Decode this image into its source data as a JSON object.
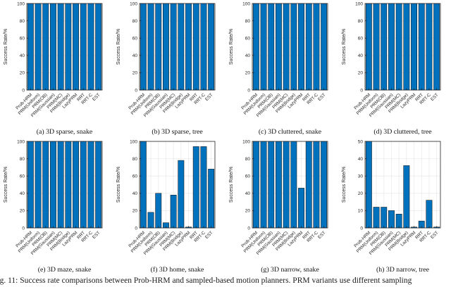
{
  "figure": {
    "caption": "Fig. 11: Success rate comparisons between Prob-HRM and sampled-based motion planners. PRM variants use different sampling",
    "colors": {
      "bar": "#0072BD",
      "bar_edge": "#0a0a0a",
      "grid": "#ebebeb",
      "axis": "#262626",
      "tick_text": "#262626",
      "caption_text": "#111111"
    }
  },
  "chart_data": [
    {
      "id": "a",
      "type": "bar",
      "title": "(a) 3D sparse, snake",
      "ylabel": "Success Rate/%",
      "ylim": [
        0,
        100
      ],
      "yticks": [
        0,
        20,
        40,
        60,
        80,
        100
      ],
      "grid": "on",
      "legend": "none",
      "categories": [
        "Prob-HRM",
        "PRM(Uniform)",
        "PRM(OB)",
        "PRM(Gaussian)",
        "PRM(MC)",
        "PRM(Bridge)",
        "LazyPRM",
        "RRT",
        "RRT-C",
        "EST"
      ],
      "values": [
        100,
        100,
        100,
        100,
        100,
        100,
        100,
        100,
        100,
        100
      ]
    },
    {
      "id": "b",
      "type": "bar",
      "title": "(b) 3D sparse, tree",
      "ylabel": "Success Rate/%",
      "ylim": [
        0,
        100
      ],
      "yticks": [
        0,
        20,
        40,
        60,
        80,
        100
      ],
      "grid": "on",
      "legend": "none",
      "categories": [
        "Prob-HRM",
        "PRM(Uniform)",
        "PRM(OB)",
        "PRM(Gaussian)",
        "PRM(MC)",
        "PRM(Bridge)",
        "LazyPRM",
        "RRT",
        "RRT-C",
        "EST"
      ],
      "values": [
        100,
        100,
        100,
        100,
        100,
        100,
        100,
        100,
        100,
        100
      ]
    },
    {
      "id": "c",
      "type": "bar",
      "title": "(c) 3D cluttered, snake",
      "ylabel": "Success Rate/%",
      "ylim": [
        0,
        100
      ],
      "yticks": [
        0,
        20,
        40,
        60,
        80,
        100
      ],
      "grid": "on",
      "legend": "none",
      "categories": [
        "Prob-HRM",
        "PRM(Uniform)",
        "PRM(OB)",
        "PRM(Gaussian)",
        "PRM(MC)",
        "PRM(Bridge)",
        "LazyPRM",
        "RRT",
        "RRT-C",
        "EST"
      ],
      "values": [
        100,
        100,
        100,
        100,
        100,
        100,
        100,
        100,
        100,
        100
      ]
    },
    {
      "id": "d",
      "type": "bar",
      "title": "(d) 3D cluttered, tree",
      "ylabel": "Success Rate/%",
      "ylim": [
        0,
        100
      ],
      "yticks": [
        0,
        20,
        40,
        60,
        80,
        100
      ],
      "grid": "on",
      "legend": "none",
      "categories": [
        "Prob-HRM",
        "PRM(Uniform)",
        "PRM(OB)",
        "PRM(Gaussian)",
        "PRM(MC)",
        "PRM(Bridge)",
        "LazyPRM",
        "RRT",
        "RRT-C",
        "EST"
      ],
      "values": [
        100,
        100,
        100,
        100,
        100,
        100,
        100,
        100,
        100,
        100
      ]
    },
    {
      "id": "e",
      "type": "bar",
      "title": "(e) 3D maze, snake",
      "ylabel": "Success Rate/%",
      "ylim": [
        0,
        100
      ],
      "yticks": [
        0,
        20,
        40,
        60,
        80,
        100
      ],
      "grid": "on",
      "legend": "none",
      "categories": [
        "Prob-HRM",
        "PRM(Uniform)",
        "PRM(OB)",
        "PRM(Gaussian)",
        "PRM(MC)",
        "PRM(Bridge)",
        "LazyPRM",
        "RRT",
        "RRT-C",
        "EST"
      ],
      "values": [
        100,
        100,
        100,
        100,
        100,
        100,
        100,
        100,
        100,
        100
      ]
    },
    {
      "id": "f",
      "type": "bar",
      "title": "(f) 3D home, snake",
      "ylabel": "Success Rate/%",
      "ylim": [
        0,
        100
      ],
      "yticks": [
        0,
        20,
        40,
        60,
        80,
        100
      ],
      "grid": "on",
      "legend": "none",
      "categories": [
        "Prob-HRM",
        "PRM(Uniform)",
        "PRM(OB)",
        "PRM(Gaussian)",
        "PRM(MC)",
        "PRM(Bridge)",
        "LazyPRM",
        "RRT",
        "RRT-C",
        "EST"
      ],
      "values": [
        100,
        18,
        40,
        6,
        38,
        78,
        1,
        94,
        94,
        68
      ]
    },
    {
      "id": "g",
      "type": "bar",
      "title": "(g) 3D narrow, snake",
      "ylabel": "Success Rate/%",
      "ylim": [
        0,
        100
      ],
      "yticks": [
        0,
        20,
        40,
        60,
        80,
        100
      ],
      "grid": "on",
      "legend": "none",
      "categories": [
        "Prob-HRM",
        "PRM(Uniform)",
        "PRM(OB)",
        "PRM(Gaussian)",
        "PRM(MC)",
        "PRM(Bridge)",
        "LazyPRM",
        "RRT",
        "RRT-C",
        "EST"
      ],
      "values": [
        100,
        100,
        100,
        100,
        100,
        100,
        46,
        100,
        100,
        100
      ]
    },
    {
      "id": "h",
      "type": "bar",
      "title": "(h) 3D narrow, tree",
      "ylabel": "Success Rate/%",
      "ylim": [
        0,
        50
      ],
      "yticks": [
        0,
        10,
        20,
        30,
        40,
        50
      ],
      "grid": "on",
      "legend": "none",
      "categories": [
        "Prob-HRM",
        "PRM(Uniform)",
        "PRM(OB)",
        "PRM(Gaussian)",
        "PRM(MC)",
        "PRM(Bridge)",
        "LazyPRM",
        "RRT",
        "RRT-C",
        "EST"
      ],
      "values": [
        50,
        12,
        12,
        10,
        8,
        36,
        0.5,
        4,
        16,
        0.5
      ]
    }
  ]
}
